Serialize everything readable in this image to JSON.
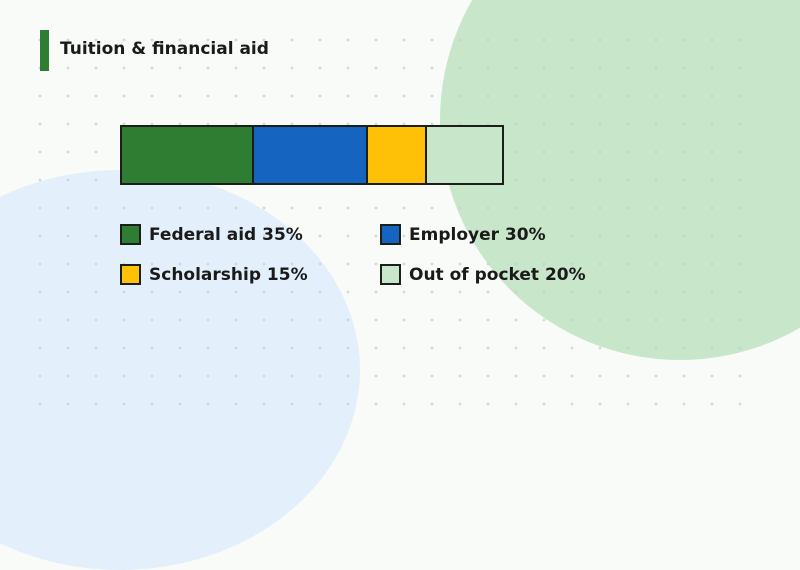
{
  "title": "Tuition & financial aid",
  "colors": {
    "accent": "#2e7d32",
    "background": "#f9fbf9",
    "circle_green": "#c8e6c9",
    "circle_blue": "#e3f0fc"
  },
  "chart_data": {
    "type": "bar",
    "subtype": "stacked-100-horizontal",
    "title": "Tuition & financial aid",
    "categories": [
      "Federal aid",
      "Employer",
      "Scholarship",
      "Out of pocket"
    ],
    "values": [
      35,
      30,
      15,
      20
    ],
    "unit": "%",
    "colors": [
      "#2e7d32",
      "#1565c0",
      "#ffc107",
      "#c8e6c9"
    ],
    "legend": [
      {
        "label": "Federal aid 35%",
        "color": "#2e7d32"
      },
      {
        "label": "Employer 30%",
        "color": "#1565c0"
      },
      {
        "label": "Scholarship 15%",
        "color": "#ffc107"
      },
      {
        "label": "Out of pocket 20%",
        "color": "#c8e6c9"
      }
    ],
    "legend_position": "below, 2 columns",
    "grid": false
  }
}
